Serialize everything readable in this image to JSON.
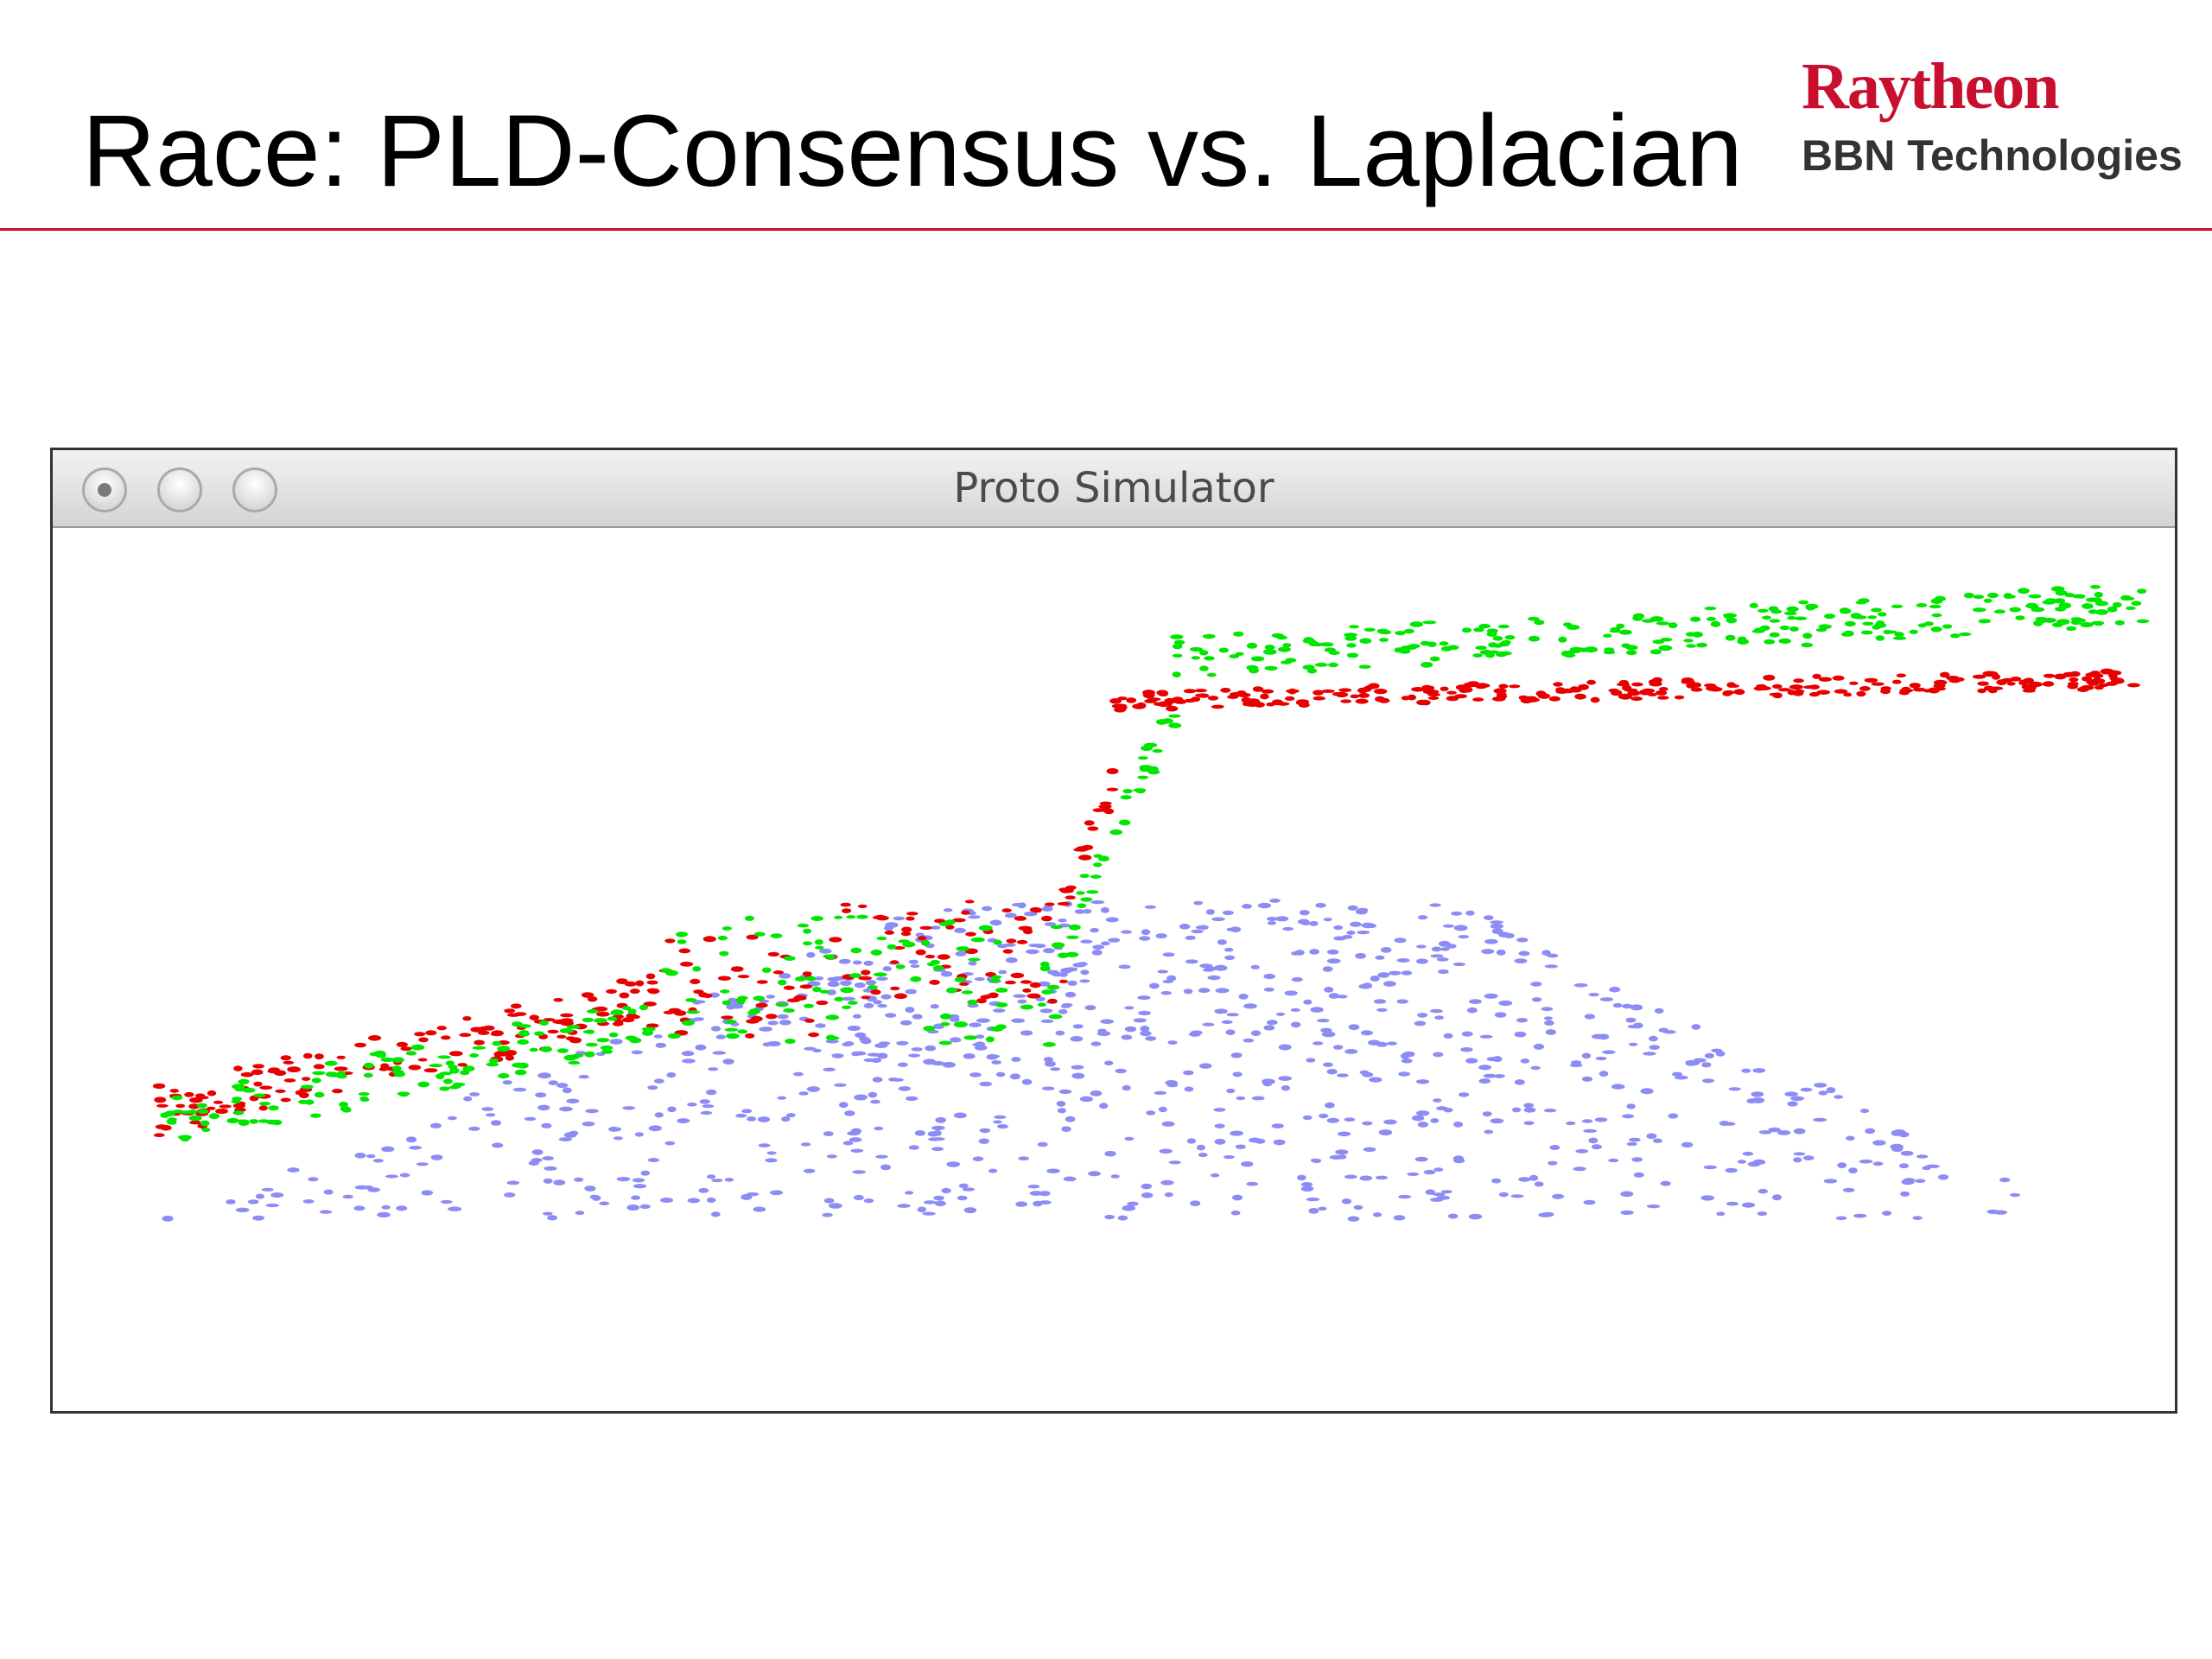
{
  "slide": {
    "title": "Race: PLD-Consensus vs. Laplacian",
    "rule_color": "#c8102e"
  },
  "logo": {
    "brand": "Raytheon",
    "subtitle": "BBN Technologies",
    "brand_color": "#c8102e"
  },
  "window": {
    "title": "Proto Simulator",
    "buttons": [
      "close",
      "minimize",
      "zoom"
    ]
  },
  "simulation": {
    "point_colors": {
      "base": "#8c8cf5",
      "laplacian": "#e80000",
      "pld_consensus": "#00e600"
    },
    "background": "#ffffff"
  }
}
